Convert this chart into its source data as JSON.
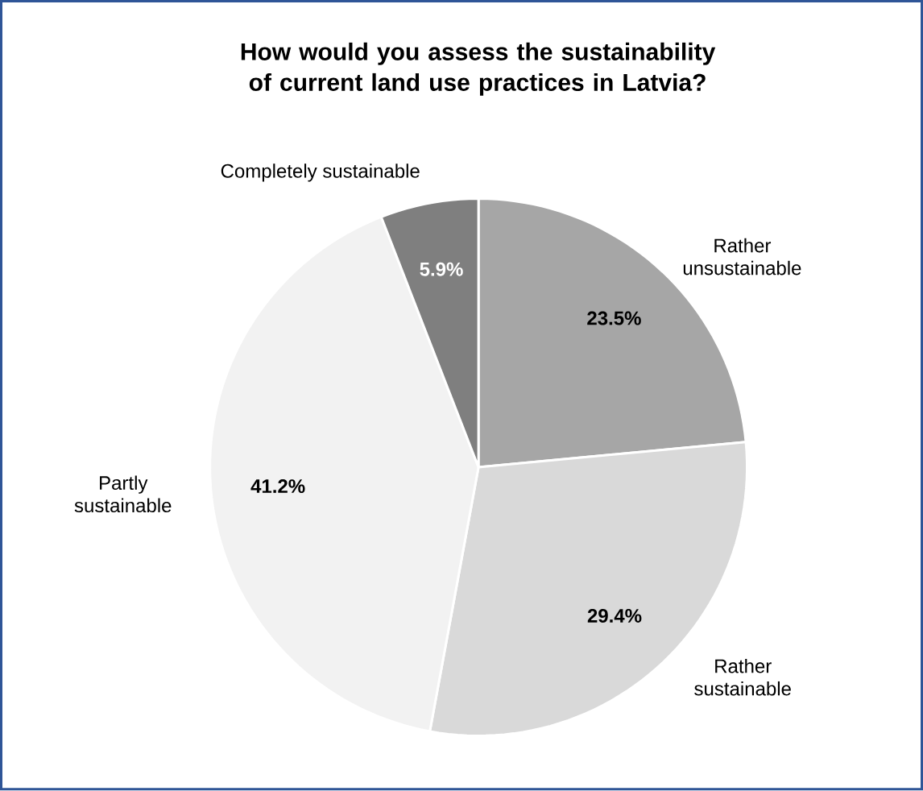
{
  "chart_data": {
    "type": "pie",
    "title": "How would you assess the sustainability of current land use practices in Latvia?",
    "categories": [
      "Rather unsustainable",
      "Rather sustainable",
      "Partly sustainable",
      "Completely sustainable"
    ],
    "values": [
      23.5,
      29.4,
      41.2,
      5.9
    ],
    "value_labels": [
      "23.5%",
      "29.4%",
      "41.2%",
      "5.9%"
    ],
    "colors": [
      "#a6a6a6",
      "#d9d9d9",
      "#f2f2f2",
      "#7f7f7f"
    ]
  }
}
